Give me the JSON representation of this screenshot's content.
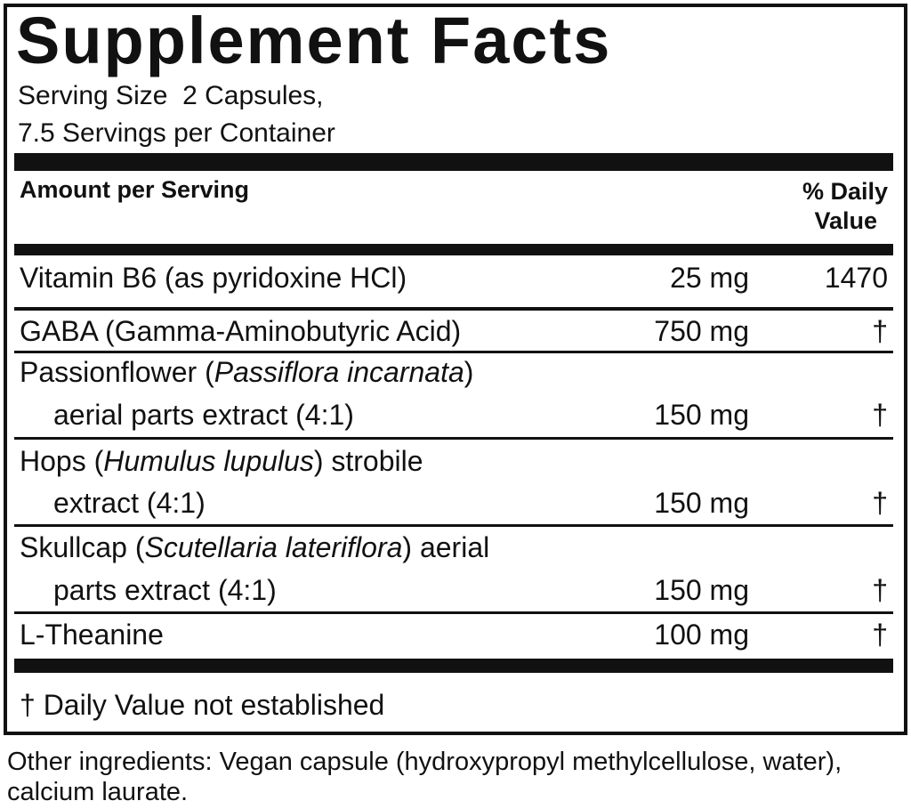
{
  "title": "Supplement Facts",
  "serving": [
    "Serving Size  2 Capsules,",
    "7.5 Servings per Container"
  ],
  "header": {
    "amount": "Amount per Serving",
    "daily_value": [
      "% Daily",
      "Value"
    ]
  },
  "rows": [
    {
      "name": "Vitamin B6 (as pyridoxine HCl)",
      "amount": "25 mg",
      "dv": 1470
    },
    {
      "name": "GABA (Gamma-Aminobutyric Acid)",
      "amount": "750 mg",
      "dv": "†"
    },
    {
      "name": "Passionflower (",
      "latin": "Passiflora incarnata",
      "name_end": ")",
      "detail": "aerial parts extract (4:1)",
      "amount": "150 mg",
      "dv": "†"
    },
    {
      "name": "Hops (",
      "latin": "Humulus lupulus",
      "name_end": ") strobile",
      "detail": "extract (4:1)",
      "amount": "150 mg",
      "dv": "†"
    },
    {
      "name": "Skullcap (",
      "latin": "Scutellaria lateriflora",
      "name_end": ") aerial",
      "detail": "parts extract (4:1)",
      "amount": "150 mg",
      "dv": "†"
    },
    {
      "name": "L-Theanine",
      "amount": "100 mg",
      "dv": "†"
    }
  ],
  "footnote": "† Daily Value not established",
  "other_ingredients": [
    "Other ingredients: Vegan capsule (hydroxypropyl methylcellulose, water),",
    "calcium laurate."
  ]
}
